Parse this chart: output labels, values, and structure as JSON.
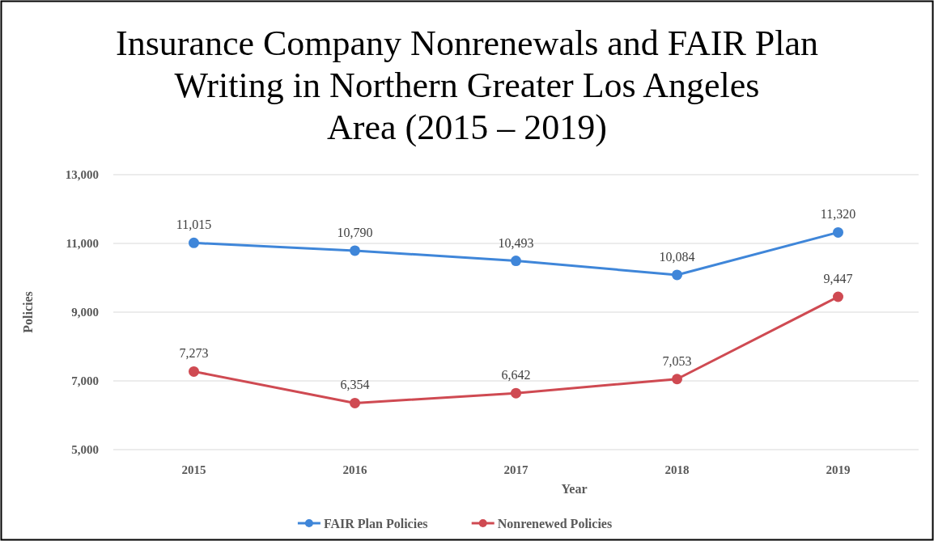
{
  "chart_data": {
    "type": "line",
    "title": "Insurance Company Nonrenewals and FAIR Plan Writing in Northern Greater Los Angeles Area  (2015 – 2019)",
    "xlabel": "Year",
    "ylabel": "Policies",
    "categories": [
      "2015",
      "2016",
      "2017",
      "2018",
      "2019"
    ],
    "series": [
      {
        "name": "FAIR Plan Policies",
        "color": "#3f86d9",
        "values": [
          11015,
          10790,
          10493,
          10084,
          11320
        ],
        "value_labels": [
          "11,015",
          "10,790",
          "10,493",
          "10,084",
          "11,320"
        ]
      },
      {
        "name": "Nonrenewed Policies",
        "color": "#cf4a52",
        "values": [
          7273,
          6354,
          6642,
          7053,
          9447
        ],
        "value_labels": [
          "7,273",
          "6,354",
          "6,642",
          "7,053",
          "9,447"
        ]
      }
    ],
    "ylim": [
      5000,
      13000
    ],
    "yticks": [
      {
        "value": 5000,
        "label": "5,000"
      },
      {
        "value": 7000,
        "label": "7,000"
      },
      {
        "value": 9000,
        "label": "9,000"
      },
      {
        "value": 11000,
        "label": "11,000"
      },
      {
        "value": 13000,
        "label": "13,000"
      }
    ],
    "grid": "y",
    "legend": "bottom",
    "marker": "circle",
    "line_style": "solid"
  }
}
